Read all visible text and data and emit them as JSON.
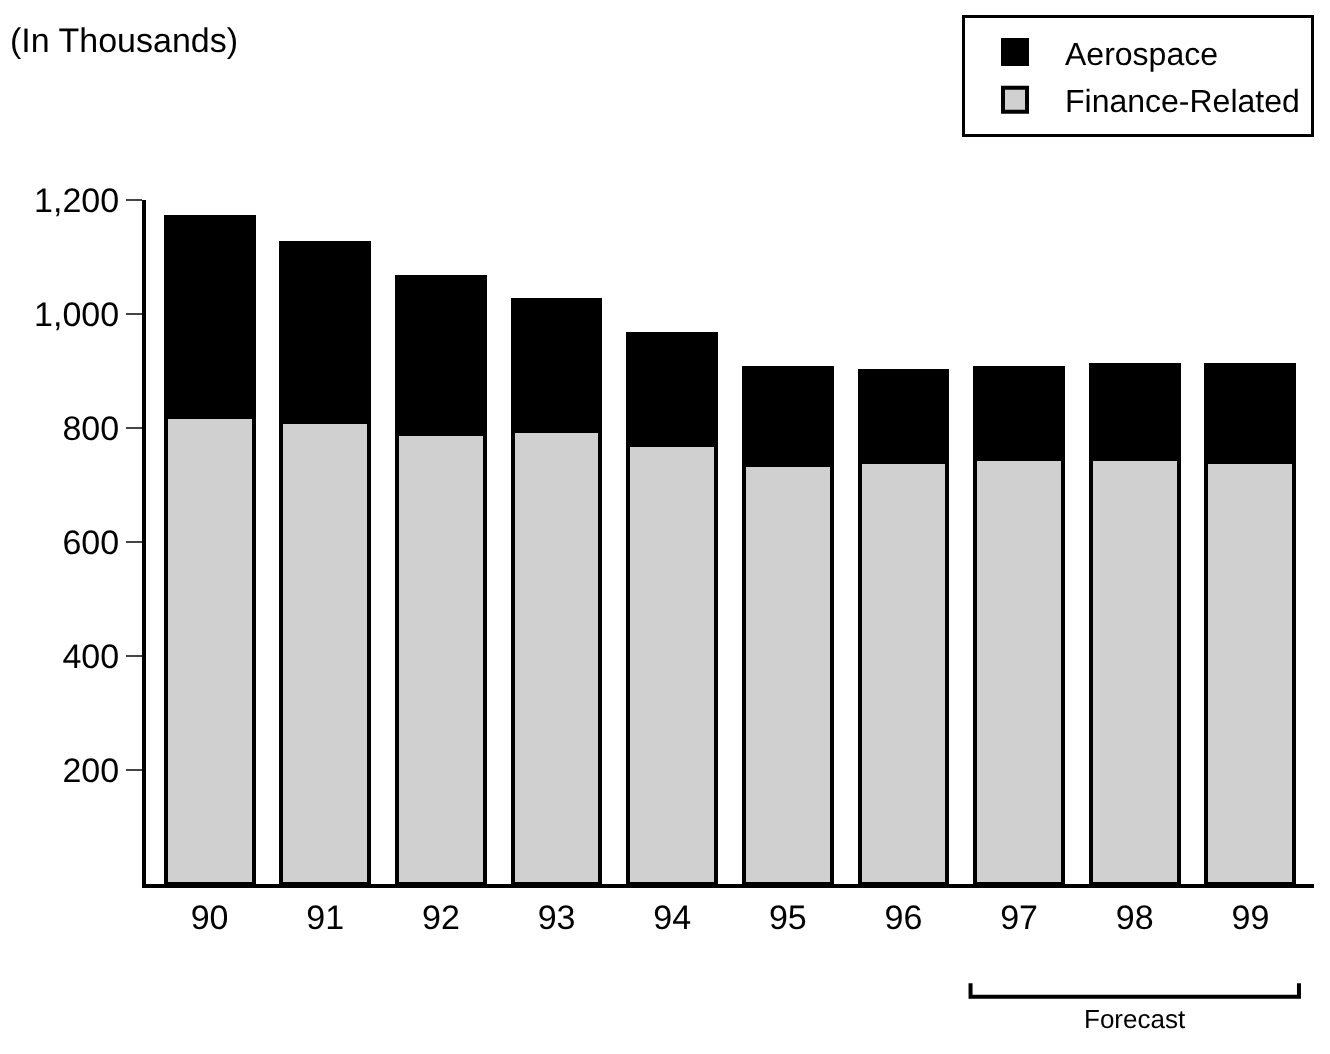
{
  "chart_data": {
    "type": "bar",
    "stacked": true,
    "ylabel": "(In Thousands)",
    "categories": [
      "90",
      "91",
      "92",
      "93",
      "94",
      "95",
      "96",
      "97",
      "98",
      "99"
    ],
    "series": [
      {
        "name": "Finance-Related",
        "color": "#d0d0d0",
        "values": [
          820,
          810,
          790,
          795,
          770,
          735,
          740,
          745,
          745,
          740
        ]
      },
      {
        "name": "Aerospace",
        "color": "#000000",
        "values": [
          350,
          315,
          275,
          230,
          195,
          170,
          160,
          160,
          165,
          170
        ]
      }
    ],
    "ylim": [
      0,
      1200
    ],
    "yticks": [
      {
        "value": 200,
        "label": "200"
      },
      {
        "value": 400,
        "label": "400"
      },
      {
        "value": 600,
        "label": "600"
      },
      {
        "value": 800,
        "label": "800"
      },
      {
        "value": 1000,
        "label": "1,000"
      },
      {
        "value": 1200,
        "label": "1,200"
      }
    ],
    "legend": "top right",
    "annotations": [
      "Forecast"
    ]
  }
}
